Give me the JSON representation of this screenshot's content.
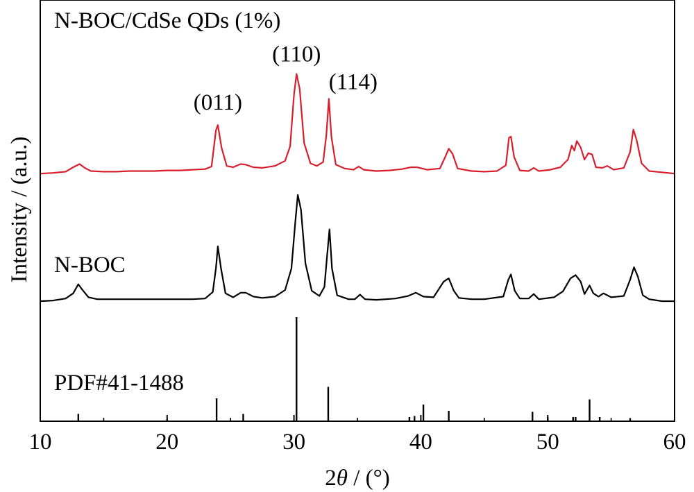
{
  "chart_data": {
    "type": "line",
    "xlabel_prefix": "2",
    "xlabel_symbol": "θ",
    "xlabel_suffix": " / (°)",
    "ylabel": "Intensity / (a.u.)",
    "xlim": [
      10,
      60
    ],
    "xticks": [
      "10",
      "20",
      "30",
      "40",
      "50",
      "60"
    ],
    "grid": false,
    "colors": {
      "red": "#d81e2c",
      "black": "#000000"
    },
    "series": [
      {
        "name": "N-BOC/CdSe QDs (1%)",
        "color": "#d81e2c",
        "baseline": 0.0,
        "points": [
          [
            10,
            0.02
          ],
          [
            11,
            0.03
          ],
          [
            12,
            0.05
          ],
          [
            12.6,
            0.12
          ],
          [
            13.1,
            0.17
          ],
          [
            13.5,
            0.11
          ],
          [
            14,
            0.06
          ],
          [
            15,
            0.05
          ],
          [
            16,
            0.05
          ],
          [
            17,
            0.06
          ],
          [
            18,
            0.06
          ],
          [
            19,
            0.06
          ],
          [
            20,
            0.07
          ],
          [
            21,
            0.07
          ],
          [
            22,
            0.08
          ],
          [
            23,
            0.09
          ],
          [
            23.5,
            0.13
          ],
          [
            23.85,
            0.7
          ],
          [
            24.0,
            0.78
          ],
          [
            24.3,
            0.42
          ],
          [
            24.7,
            0.14
          ],
          [
            25.2,
            0.12
          ],
          [
            25.8,
            0.17
          ],
          [
            26.2,
            0.16
          ],
          [
            26.8,
            0.12
          ],
          [
            27.5,
            0.11
          ],
          [
            28.5,
            0.14
          ],
          [
            29.3,
            0.22
          ],
          [
            29.7,
            0.45
          ],
          [
            30.0,
            1.25
          ],
          [
            30.2,
            1.58
          ],
          [
            30.45,
            1.35
          ],
          [
            30.8,
            0.5
          ],
          [
            31.3,
            0.18
          ],
          [
            31.8,
            0.14
          ],
          [
            32.3,
            0.2
          ],
          [
            32.55,
            0.62
          ],
          [
            32.75,
            1.19
          ],
          [
            32.95,
            0.6
          ],
          [
            33.3,
            0.16
          ],
          [
            34,
            0.1
          ],
          [
            34.7,
            0.08
          ],
          [
            35.1,
            0.13
          ],
          [
            35.5,
            0.08
          ],
          [
            36.5,
            0.06
          ],
          [
            37.5,
            0.07
          ],
          [
            38.5,
            0.09
          ],
          [
            39.2,
            0.12
          ],
          [
            39.7,
            0.12
          ],
          [
            40.5,
            0.08
          ],
          [
            41.5,
            0.1
          ],
          [
            41.9,
            0.27
          ],
          [
            42.2,
            0.41
          ],
          [
            42.5,
            0.33
          ],
          [
            42.9,
            0.1
          ],
          [
            44,
            0.06
          ],
          [
            45,
            0.05
          ],
          [
            46,
            0.06
          ],
          [
            46.7,
            0.15
          ],
          [
            46.95,
            0.58
          ],
          [
            47.1,
            0.6
          ],
          [
            47.35,
            0.28
          ],
          [
            47.8,
            0.07
          ],
          [
            48.5,
            0.06
          ],
          [
            48.9,
            0.11
          ],
          [
            49.3,
            0.06
          ],
          [
            50.2,
            0.08
          ],
          [
            51,
            0.12
          ],
          [
            51.6,
            0.24
          ],
          [
            51.9,
            0.46
          ],
          [
            52.1,
            0.38
          ],
          [
            52.3,
            0.53
          ],
          [
            52.6,
            0.43
          ],
          [
            52.9,
            0.24
          ],
          [
            53.2,
            0.34
          ],
          [
            53.5,
            0.32
          ],
          [
            53.8,
            0.12
          ],
          [
            54.3,
            0.11
          ],
          [
            54.7,
            0.14
          ],
          [
            55.2,
            0.08
          ],
          [
            56,
            0.11
          ],
          [
            56.5,
            0.36
          ],
          [
            56.75,
            0.71
          ],
          [
            57.0,
            0.55
          ],
          [
            57.4,
            0.18
          ],
          [
            58,
            0.06
          ],
          [
            59,
            0.04
          ],
          [
            60,
            0.02
          ]
        ]
      },
      {
        "name": "N-BOC",
        "color": "#000000",
        "baseline": 0.0,
        "points": [
          [
            10,
            0.0
          ],
          [
            11,
            0.01
          ],
          [
            12,
            0.04
          ],
          [
            12.6,
            0.12
          ],
          [
            13.0,
            0.26
          ],
          [
            13.3,
            0.18
          ],
          [
            13.8,
            0.06
          ],
          [
            14.5,
            0.03
          ],
          [
            16,
            0.03
          ],
          [
            18,
            0.03
          ],
          [
            20,
            0.03
          ],
          [
            22,
            0.03
          ],
          [
            23,
            0.04
          ],
          [
            23.6,
            0.14
          ],
          [
            23.85,
            0.51
          ],
          [
            24.0,
            0.84
          ],
          [
            24.25,
            0.5
          ],
          [
            24.6,
            0.12
          ],
          [
            25.2,
            0.06
          ],
          [
            25.8,
            0.13
          ],
          [
            26.2,
            0.13
          ],
          [
            26.8,
            0.07
          ],
          [
            27.5,
            0.05
          ],
          [
            28.5,
            0.07
          ],
          [
            29.3,
            0.17
          ],
          [
            29.8,
            0.5
          ],
          [
            30.1,
            1.2
          ],
          [
            30.3,
            1.63
          ],
          [
            30.55,
            1.4
          ],
          [
            30.9,
            0.58
          ],
          [
            31.4,
            0.16
          ],
          [
            32,
            0.08
          ],
          [
            32.4,
            0.22
          ],
          [
            32.6,
            0.67
          ],
          [
            32.8,
            1.1
          ],
          [
            33.0,
            0.5
          ],
          [
            33.4,
            0.09
          ],
          [
            34.3,
            0.03
          ],
          [
            34.8,
            0.03
          ],
          [
            35.2,
            0.1
          ],
          [
            35.6,
            0.03
          ],
          [
            36.5,
            0.02
          ],
          [
            38,
            0.04
          ],
          [
            39,
            0.08
          ],
          [
            39.6,
            0.13
          ],
          [
            40.2,
            0.07
          ],
          [
            41,
            0.06
          ],
          [
            41.8,
            0.3
          ],
          [
            42.2,
            0.35
          ],
          [
            42.6,
            0.16
          ],
          [
            43,
            0.05
          ],
          [
            44,
            0.03
          ],
          [
            45,
            0.03
          ],
          [
            46.5,
            0.07
          ],
          [
            46.9,
            0.33
          ],
          [
            47.1,
            0.41
          ],
          [
            47.4,
            0.16
          ],
          [
            47.8,
            0.04
          ],
          [
            48.5,
            0.04
          ],
          [
            48.9,
            0.11
          ],
          [
            49.3,
            0.03
          ],
          [
            50.5,
            0.06
          ],
          [
            51.2,
            0.15
          ],
          [
            51.8,
            0.35
          ],
          [
            52.2,
            0.4
          ],
          [
            52.6,
            0.3
          ],
          [
            52.9,
            0.11
          ],
          [
            53.3,
            0.24
          ],
          [
            53.6,
            0.12
          ],
          [
            54,
            0.07
          ],
          [
            54.4,
            0.12
          ],
          [
            55,
            0.06
          ],
          [
            56,
            0.08
          ],
          [
            56.5,
            0.33
          ],
          [
            56.8,
            0.52
          ],
          [
            57.1,
            0.38
          ],
          [
            57.5,
            0.09
          ],
          [
            58,
            0.03
          ],
          [
            59,
            0.0
          ],
          [
            60,
            0.0
          ]
        ]
      }
    ],
    "reference": {
      "label": "PDF#41-1488",
      "color": "#000000",
      "lines": [
        {
          "x": 13.0,
          "h": 0.07
        },
        {
          "x": 20.0,
          "h": 0.02
        },
        {
          "x": 23.9,
          "h": 0.22
        },
        {
          "x": 26.0,
          "h": 0.07
        },
        {
          "x": 30.2,
          "h": 1.0
        },
        {
          "x": 32.7,
          "h": 0.33
        },
        {
          "x": 39.1,
          "h": 0.04
        },
        {
          "x": 39.5,
          "h": 0.05
        },
        {
          "x": 40.2,
          "h": 0.16
        },
        {
          "x": 42.2,
          "h": 0.1
        },
        {
          "x": 48.8,
          "h": 0.09
        },
        {
          "x": 50.0,
          "h": 0.04
        },
        {
          "x": 52.0,
          "h": 0.04
        },
        {
          "x": 52.2,
          "h": 0.04
        },
        {
          "x": 53.3,
          "h": 0.21
        },
        {
          "x": 54.1,
          "h": 0.04
        },
        {
          "x": 56.5,
          "h": 0.03
        }
      ]
    },
    "annotations": [
      {
        "text": "(011)",
        "x": 24.0
      },
      {
        "text": "(110)",
        "x": 30.2
      },
      {
        "text": "(114)",
        "x": 32.75
      }
    ]
  }
}
